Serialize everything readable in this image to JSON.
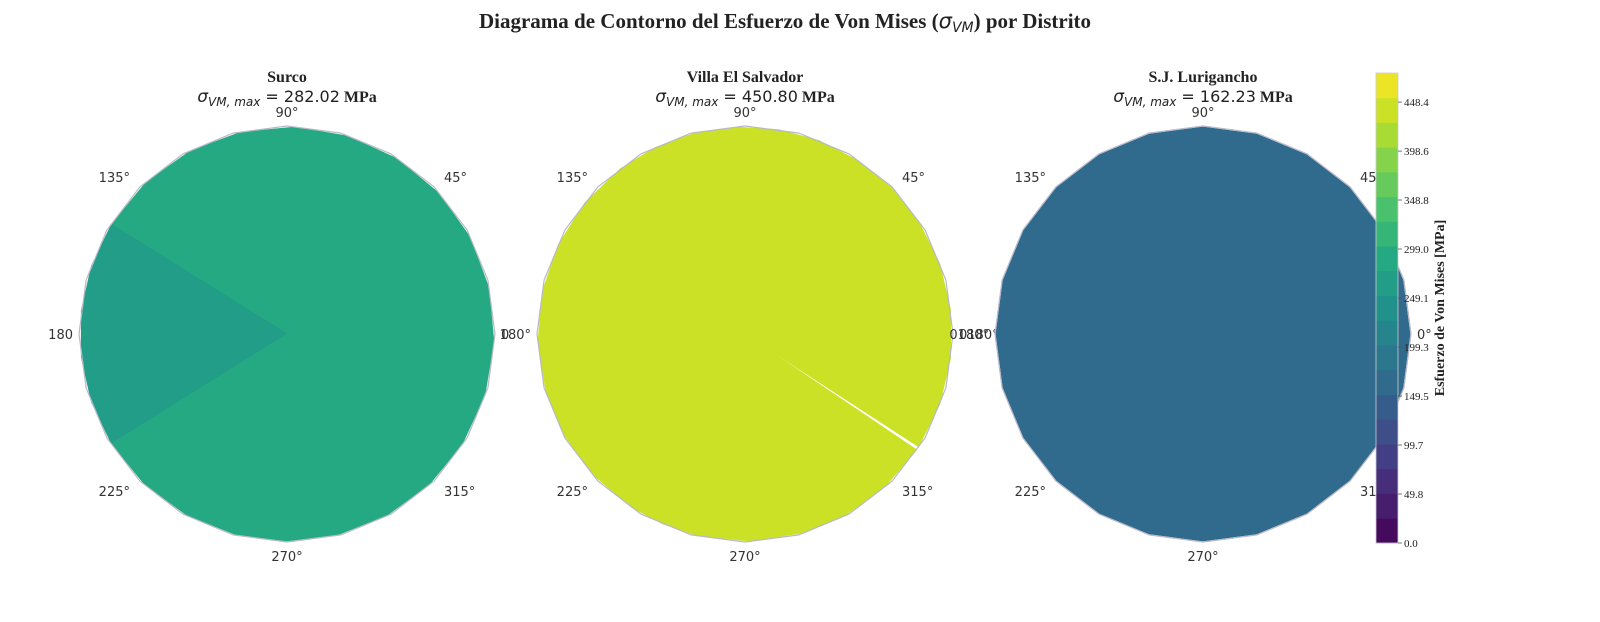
{
  "figure": {
    "title_prefix": "Diagrama de Contorno del Esfuerzo de Von Mises (",
    "title_symbol": "σ",
    "title_sub": "VM",
    "title_suffix": ") por Distrito"
  },
  "chart_data": [
    {
      "type": "polar-contour",
      "title": "Surco",
      "max_label_symbol": "σ",
      "max_label_sub": "VM, max",
      "max_value_text": " = 282.02",
      "max_unit": "MPa",
      "sigma_vm_max": 282.02,
      "angle_labels": [
        "0",
        "45°",
        "90°",
        "135°",
        "180",
        "225°",
        "270°",
        "315°"
      ],
      "sectors": [
        {
          "from_deg": -32,
          "to_deg": 148,
          "value": 282
        },
        {
          "from_deg": 148,
          "to_deg": 212,
          "value": 265
        },
        {
          "from_deg": 212,
          "to_deg": 328,
          "value": 282
        }
      ]
    },
    {
      "type": "polar-contour",
      "title": "Villa El Salvador",
      "max_label_symbol": "σ",
      "max_label_sub": "VM, max",
      "max_value_text": " = 450.80",
      "max_unit": "MPa",
      "sigma_vm_max": 450.8,
      "angle_labels": [
        "0180°",
        "45°",
        "90°",
        "135°",
        "180°",
        "225°",
        "270°",
        "315°"
      ],
      "sectors": [
        {
          "from_deg": -33,
          "to_deg": 33,
          "value": 450
        },
        {
          "from_deg": 33,
          "to_deg": 69,
          "value": 430
        },
        {
          "from_deg": 69,
          "to_deg": 104,
          "value": 450
        },
        {
          "from_deg": 104,
          "to_deg": 127,
          "value": 430
        },
        {
          "from_deg": 127,
          "to_deg": 237,
          "value": 450
        },
        {
          "from_deg": 237,
          "to_deg": 256,
          "value": 430
        },
        {
          "from_deg": 256,
          "to_deg": 286,
          "value": 450
        },
        {
          "from_deg": 286,
          "to_deg": 326,
          "value": 430
        }
      ]
    },
    {
      "type": "polar-contour",
      "title": "S.J. Lurigancho",
      "max_label_symbol": "σ",
      "max_label_sub": "VM, max",
      "max_value_text": " = 162.23",
      "max_unit": "MPa",
      "sigma_vm_max": 162.23,
      "angle_labels": [
        "0°",
        "45°",
        "90°",
        "135°",
        "0180°",
        "225°",
        "270°",
        "315°"
      ],
      "sectors": [
        {
          "from_deg": 0,
          "to_deg": 360,
          "value": 162
        }
      ]
    }
  ],
  "colorbar": {
    "label": "Esfuerzo de Von Mises [MPa]",
    "min": 0.0,
    "max": 478.0,
    "ticks": [
      0.0,
      49.8,
      99.7,
      149.5,
      199.3,
      249.1,
      299.0,
      348.8,
      398.6,
      448.4
    ],
    "tick_labels": [
      "0.0",
      "49.8",
      "99.7",
      "149.5",
      "199.3",
      "249.1",
      "299.0",
      "348.8",
      "398.6",
      "448.4"
    ],
    "levels": 19,
    "colormap": "viridis",
    "colors": [
      "#440154",
      "#482475",
      "#414487",
      "#355f8d",
      "#2a788e",
      "#21918c",
      "#22a884",
      "#44bf70",
      "#7ad151",
      "#bddf26",
      "#fde725"
    ]
  }
}
